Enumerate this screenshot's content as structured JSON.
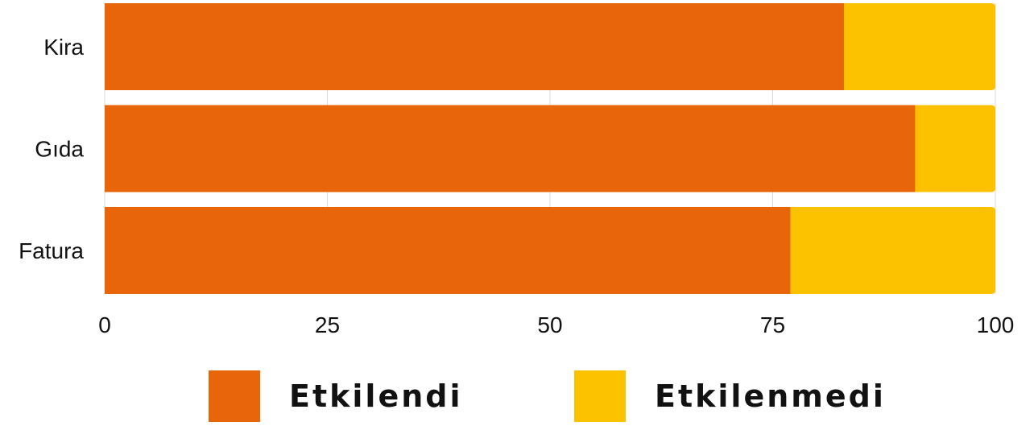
{
  "chart_data": {
    "type": "bar",
    "orientation": "horizontal",
    "stacked": true,
    "categories": [
      "Kira",
      "Gıda",
      "Fatura"
    ],
    "series": [
      {
        "name": "Etkilendi",
        "values": [
          83,
          91,
          77
        ],
        "color": "#E8650A"
      },
      {
        "name": "Etkilenmedi",
        "values": [
          17,
          9,
          23
        ],
        "color": "#FCC200"
      }
    ],
    "xlim": [
      0,
      100
    ],
    "xticks": [
      "0",
      "25",
      "50",
      "75",
      "100"
    ],
    "grid": "vertical",
    "legend": "bottom",
    "title": "",
    "xlabel": "",
    "ylabel": ""
  }
}
